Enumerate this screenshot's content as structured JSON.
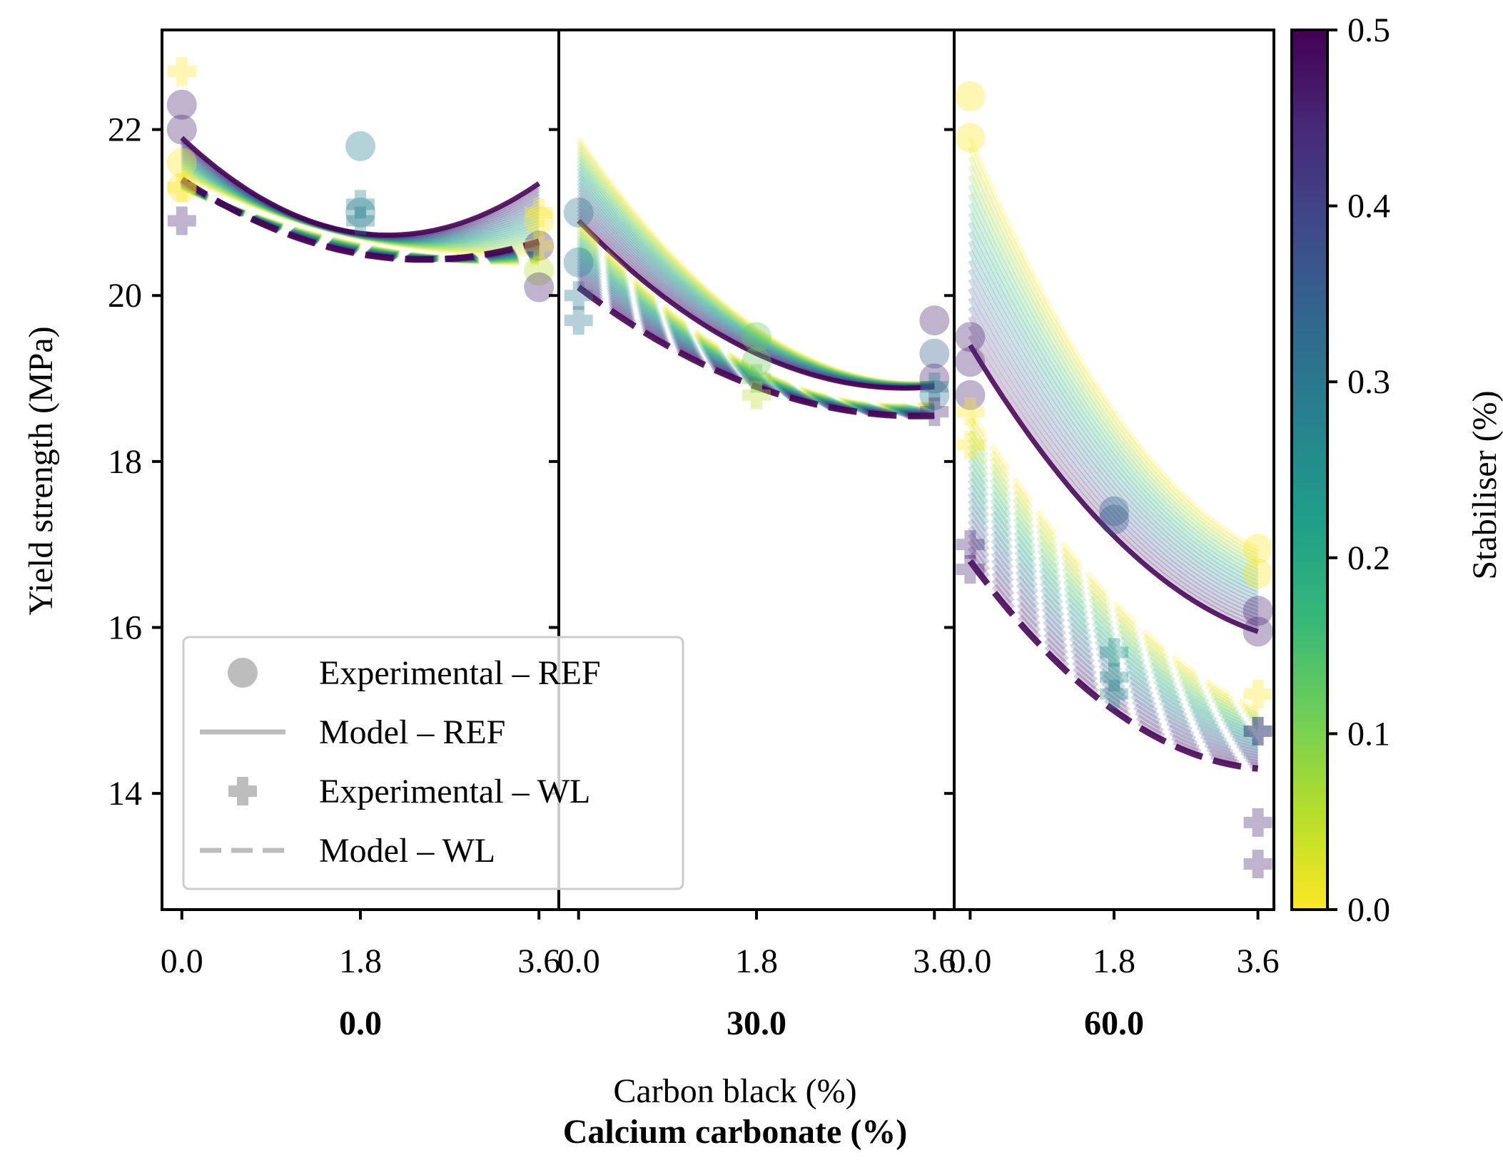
{
  "chart_data": {
    "type": "scatter",
    "title": "",
    "ylabel": "Yield strength (MPa)",
    "xlabel": "Carbon black (%)",
    "group_label": "Calcium carbonate (%)",
    "ylim": [
      12.6,
      23.2
    ],
    "yticks": [
      14,
      16,
      18,
      20,
      22
    ],
    "xlim": [
      -0.2,
      3.8
    ],
    "xticks": [
      0.0,
      1.8,
      3.6
    ],
    "xtick_labels": [
      "0.0",
      "1.8",
      "3.6"
    ],
    "ytick_labels": [
      "14",
      "16",
      "18",
      "20",
      "22"
    ],
    "colorbar": {
      "label": "Stabiliser (%)",
      "colormap": "viridis",
      "range": [
        0.0,
        0.5
      ],
      "ticks": [
        0.0,
        0.1,
        0.2,
        0.3,
        0.4,
        0.5
      ],
      "tick_labels": [
        "0.0",
        "0.1",
        "0.2",
        "0.3",
        "0.4",
        "0.5"
      ]
    },
    "legend": {
      "placement": "lower-left of first panel",
      "entries": [
        {
          "label": "Experimental – REF",
          "marker": "circle"
        },
        {
          "label": "Model – REF",
          "marker": "solid-line"
        },
        {
          "label": "Experimental – WL",
          "marker": "plus"
        },
        {
          "label": "Model – WL",
          "marker": "dashed-line"
        }
      ]
    },
    "panels": [
      {
        "group": "0.0",
        "model_ref": {
          "s0": [
            21.45,
            20.7,
            20.5
          ],
          "s05": [
            21.9,
            20.75,
            21.35
          ]
        },
        "model_wl": {
          "s0": [
            21.3,
            20.6,
            20.4
          ],
          "s05": [
            21.4,
            20.5,
            20.65
          ]
        },
        "exp_ref": [
          {
            "x": 0.0,
            "y": 22.3,
            "s": 0.45
          },
          {
            "x": 0.0,
            "y": 22.0,
            "s": 0.45
          },
          {
            "x": 0.0,
            "y": 21.6,
            "s": 0.0
          },
          {
            "x": 0.0,
            "y": 21.3,
            "s": 0.0
          },
          {
            "x": 1.8,
            "y": 21.8,
            "s": 0.28
          },
          {
            "x": 1.8,
            "y": 21.0,
            "s": 0.28
          },
          {
            "x": 3.6,
            "y": 20.9,
            "s": 0.0
          },
          {
            "x": 3.6,
            "y": 20.6,
            "s": 0.45
          },
          {
            "x": 3.6,
            "y": 20.3,
            "s": 0.05
          },
          {
            "x": 3.6,
            "y": 20.1,
            "s": 0.45
          }
        ],
        "exp_wl": [
          {
            "x": 0.0,
            "y": 22.7,
            "s": 0.0
          },
          {
            "x": 0.0,
            "y": 21.3,
            "s": 0.0
          },
          {
            "x": 0.0,
            "y": 20.9,
            "s": 0.45
          },
          {
            "x": 1.8,
            "y": 21.1,
            "s": 0.28
          },
          {
            "x": 1.8,
            "y": 20.9,
            "s": 0.28
          },
          {
            "x": 3.6,
            "y": 21.0,
            "s": 0.0
          },
          {
            "x": 3.6,
            "y": 20.6,
            "s": 0.0
          }
        ]
      },
      {
        "group": "30.0",
        "model_ref": {
          "s0": [
            21.9,
            19.6,
            18.95
          ],
          "s05": [
            20.9,
            19.3,
            18.9
          ]
        },
        "model_wl": {
          "s0": [
            20.9,
            19.1,
            18.7
          ],
          "s05": [
            20.1,
            18.9,
            18.55
          ]
        },
        "exp_ref": [
          {
            "x": 0.0,
            "y": 21.0,
            "s": 0.3
          },
          {
            "x": 0.0,
            "y": 20.4,
            "s": 0.3
          },
          {
            "x": 1.8,
            "y": 19.5,
            "s": 0.12
          },
          {
            "x": 1.8,
            "y": 19.2,
            "s": 0.12
          },
          {
            "x": 3.6,
            "y": 19.7,
            "s": 0.45
          },
          {
            "x": 3.6,
            "y": 19.3,
            "s": 0.35
          },
          {
            "x": 3.6,
            "y": 19.0,
            "s": 0.45
          },
          {
            "x": 3.6,
            "y": 18.8,
            "s": 0.3
          }
        ],
        "exp_wl": [
          {
            "x": 0.0,
            "y": 20.0,
            "s": 0.3
          },
          {
            "x": 0.0,
            "y": 19.7,
            "s": 0.3
          },
          {
            "x": 1.8,
            "y": 18.8,
            "s": 0.05
          },
          {
            "x": 1.8,
            "y": 19.0,
            "s": 0.12
          },
          {
            "x": 3.6,
            "y": 18.9,
            "s": 0.3
          },
          {
            "x": 3.6,
            "y": 18.6,
            "s": 0.45
          }
        ]
      },
      {
        "group": "60.0",
        "model_ref": {
          "s0": [
            21.9,
            18.6,
            16.95
          ],
          "s05": [
            19.4,
            17.1,
            15.95
          ]
        },
        "model_wl": {
          "s0": [
            18.6,
            16.3,
            15.0
          ],
          "s05": [
            16.8,
            15.0,
            14.3
          ]
        },
        "exp_ref": [
          {
            "x": 0.0,
            "y": 22.4,
            "s": 0.0
          },
          {
            "x": 0.0,
            "y": 21.9,
            "s": 0.0
          },
          {
            "x": 0.0,
            "y": 19.5,
            "s": 0.45
          },
          {
            "x": 0.0,
            "y": 19.2,
            "s": 0.45
          },
          {
            "x": 0.0,
            "y": 18.8,
            "s": 0.45
          },
          {
            "x": 1.8,
            "y": 17.4,
            "s": 0.35
          },
          {
            "x": 1.8,
            "y": 17.3,
            "s": 0.35
          },
          {
            "x": 3.6,
            "y": 16.95,
            "s": 0.0
          },
          {
            "x": 3.6,
            "y": 16.65,
            "s": 0.0
          },
          {
            "x": 3.6,
            "y": 16.2,
            "s": 0.45
          },
          {
            "x": 3.6,
            "y": 15.95,
            "s": 0.45
          }
        ],
        "exp_wl": [
          {
            "x": 0.0,
            "y": 18.6,
            "s": 0.0
          },
          {
            "x": 0.0,
            "y": 18.2,
            "s": 0.0
          },
          {
            "x": 0.0,
            "y": 17.0,
            "s": 0.45
          },
          {
            "x": 0.0,
            "y": 16.7,
            "s": 0.45
          },
          {
            "x": 1.8,
            "y": 15.7,
            "s": 0.25
          },
          {
            "x": 1.8,
            "y": 15.4,
            "s": 0.25
          },
          {
            "x": 1.8,
            "y": 15.2,
            "s": 0.25
          },
          {
            "x": 3.6,
            "y": 15.2,
            "s": 0.0
          },
          {
            "x": 3.6,
            "y": 14.75,
            "s": 0.3
          },
          {
            "x": 3.6,
            "y": 14.75,
            "s": 0.45
          },
          {
            "x": 3.6,
            "y": 13.65,
            "s": 0.45
          },
          {
            "x": 3.6,
            "y": 13.15,
            "s": 0.45
          }
        ]
      }
    ]
  }
}
